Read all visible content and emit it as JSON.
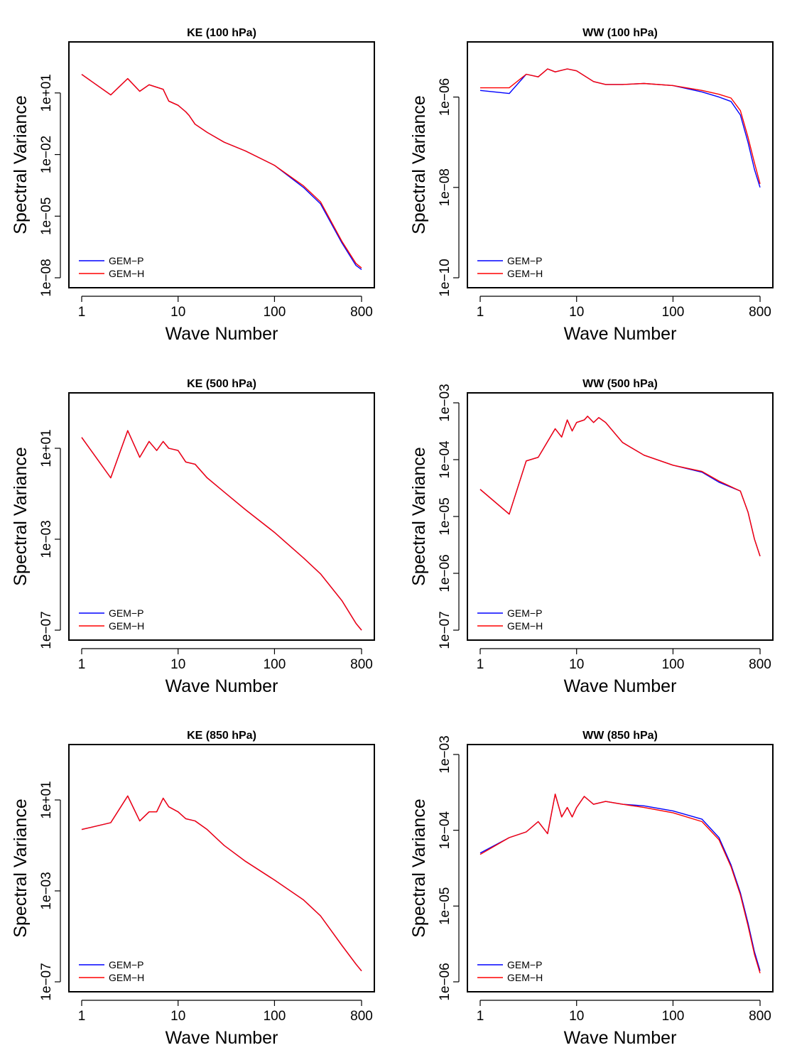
{
  "chart_data": [
    {
      "type": "line",
      "title": "KE (100 hPa)",
      "xlabel": "Wave Number",
      "ylabel": "Spectral Variance",
      "xscale": "log",
      "yscale": "log",
      "xlim": [
        1,
        800
      ],
      "ylim": [
        1e-08,
        1000
      ],
      "xticks": [
        1,
        10,
        100,
        800
      ],
      "xtick_labels": [
        "1",
        "10",
        "100",
        "800"
      ],
      "yticks": [
        1e-08,
        1e-05,
        0.01,
        10
      ],
      "ytick_labels": [
        "1e−08",
        "1e−05",
        "1e−02",
        "1e+01"
      ],
      "legend": [
        "GEM−P",
        "GEM−H"
      ],
      "legend_position": "bottom-left",
      "series": [
        {
          "name": "GEM−P",
          "color": "#0000ff",
          "x": [
            1,
            2,
            3,
            4,
            5,
            7,
            8,
            10,
            12,
            13,
            15,
            20,
            30,
            50,
            100,
            200,
            300,
            500,
            700,
            800
          ],
          "y": [
            80,
            8,
            50,
            12,
            25,
            15,
            4,
            2.5,
            1.2,
            0.8,
            0.3,
            0.12,
            0.04,
            0.015,
            0.003,
            0.00025,
            4e-05,
            5e-07,
            4e-08,
            2.5e-08
          ]
        },
        {
          "name": "GEM−H",
          "color": "#ff0000",
          "x": [
            1,
            2,
            3,
            4,
            5,
            7,
            8,
            10,
            12,
            13,
            15,
            20,
            30,
            50,
            100,
            200,
            300,
            500,
            700,
            800
          ],
          "y": [
            80,
            8,
            50,
            12,
            25,
            15,
            4,
            2.5,
            1.2,
            0.8,
            0.3,
            0.12,
            0.04,
            0.015,
            0.003,
            0.0003,
            5e-05,
            6e-07,
            5e-08,
            3e-08
          ]
        }
      ]
    },
    {
      "type": "line",
      "title": "WW (100 hPa)",
      "xlabel": "Wave Number",
      "ylabel": "Spectral Variance",
      "xscale": "log",
      "yscale": "log",
      "xlim": [
        1,
        800
      ],
      "ylim": [
        1e-10,
        1e-05
      ],
      "xticks": [
        1,
        10,
        100,
        800
      ],
      "xtick_labels": [
        "1",
        "10",
        "100",
        "800"
      ],
      "yticks": [
        1e-10,
        1e-08,
        1e-06
      ],
      "ytick_labels": [
        "1e−10",
        "1e−08",
        "1e−06"
      ],
      "legend": [
        "GEM−P",
        "GEM−H"
      ],
      "legend_position": "bottom-left",
      "series": [
        {
          "name": "GEM−P",
          "color": "#0000ff",
          "x": [
            1,
            2,
            3,
            4,
            5,
            6,
            8,
            10,
            15,
            20,
            30,
            50,
            100,
            200,
            300,
            400,
            500,
            600,
            700,
            800
          ],
          "y": [
            1.4e-06,
            1.2e-06,
            3.2e-06,
            2.8e-06,
            4.2e-06,
            3.6e-06,
            4.2e-06,
            3.8e-06,
            2.2e-06,
            1.9e-06,
            1.9e-06,
            2e-06,
            1.8e-06,
            1.3e-06,
            1e-06,
            8e-07,
            4e-07,
            1e-07,
            2.5e-08,
            1e-08
          ]
        },
        {
          "name": "GEM−H",
          "color": "#ff0000",
          "x": [
            1,
            2,
            3,
            4,
            5,
            6,
            8,
            10,
            15,
            20,
            30,
            50,
            100,
            200,
            300,
            400,
            500,
            600,
            700,
            800
          ],
          "y": [
            1.6e-06,
            1.6e-06,
            3.2e-06,
            2.8e-06,
            4.2e-06,
            3.6e-06,
            4.2e-06,
            3.8e-06,
            2.2e-06,
            1.9e-06,
            1.9e-06,
            2e-06,
            1.8e-06,
            1.4e-06,
            1.15e-06,
            9.5e-07,
            5e-07,
            1.3e-07,
            3.5e-08,
            1.2e-08
          ]
        }
      ]
    },
    {
      "type": "line",
      "title": "KE (500 hPa)",
      "xlabel": "Wave Number",
      "ylabel": "Spectral Variance",
      "xscale": "log",
      "yscale": "log",
      "xlim": [
        1,
        800
      ],
      "ylim": [
        1e-07,
        1000
      ],
      "xticks": [
        1,
        10,
        100,
        800
      ],
      "xtick_labels": [
        "1",
        "10",
        "100",
        "800"
      ],
      "yticks": [
        1e-07,
        0.001,
        10
      ],
      "ytick_labels": [
        "1e−07",
        "1e−03",
        "1e+01"
      ],
      "legend": [
        "GEM−P",
        "GEM−H"
      ],
      "legend_position": "bottom-left",
      "series": [
        {
          "name": "GEM−P",
          "color": "#0000ff",
          "x": [
            1,
            2,
            3,
            4,
            5,
            6,
            7,
            8,
            10,
            12,
            15,
            20,
            30,
            50,
            100,
            200,
            300,
            500,
            700,
            800
          ],
          "y": [
            30,
            0.5,
            60,
            4,
            20,
            8,
            20,
            10,
            8,
            2.5,
            2,
            0.5,
            0.12,
            0.02,
            0.002,
            0.00015,
            3e-05,
            2e-06,
            2e-07,
            1e-07
          ]
        },
        {
          "name": "GEM−H",
          "color": "#ff0000",
          "x": [
            1,
            2,
            3,
            4,
            5,
            6,
            7,
            8,
            10,
            12,
            15,
            20,
            30,
            50,
            100,
            200,
            300,
            500,
            700,
            800
          ],
          "y": [
            30,
            0.5,
            60,
            4,
            20,
            8,
            20,
            10,
            8,
            2.5,
            2,
            0.5,
            0.12,
            0.02,
            0.002,
            0.00015,
            3e-05,
            2e-06,
            2e-07,
            1e-07
          ]
        }
      ]
    },
    {
      "type": "line",
      "title": "WW (500 hPa)",
      "xlabel": "Wave Number",
      "ylabel": "Spectral Variance",
      "xscale": "log",
      "yscale": "log",
      "xlim": [
        1,
        800
      ],
      "ylim": [
        1e-07,
        0.001
      ],
      "xticks": [
        1,
        10,
        100,
        800
      ],
      "xtick_labels": [
        "1",
        "10",
        "100",
        "800"
      ],
      "yticks": [
        1e-07,
        1e-06,
        1e-05,
        0.0001,
        0.001
      ],
      "ytick_labels": [
        "1e−07",
        "1e−06",
        "1e−05",
        "1e−04",
        "1e−03"
      ],
      "legend": [
        "GEM−P",
        "GEM−H"
      ],
      "legend_position": "bottom-left",
      "series": [
        {
          "name": "GEM−P",
          "color": "#0000ff",
          "x": [
            1,
            2,
            3,
            4,
            6,
            7,
            8,
            9,
            10,
            12,
            13,
            15,
            17,
            20,
            30,
            50,
            100,
            200,
            300,
            500,
            600,
            700,
            800
          ],
          "y": [
            3e-05,
            1.1e-05,
            9.5e-05,
            0.00011,
            0.00035,
            0.00025,
            0.0005,
            0.00032,
            0.00045,
            0.0005,
            0.00058,
            0.00045,
            0.00055,
            0.00045,
            0.0002,
            0.00012,
            8e-05,
            6e-05,
            4e-05,
            2.8e-05,
            1.2e-05,
            4e-06,
            2e-06
          ]
        },
        {
          "name": "GEM−H",
          "color": "#ff0000",
          "x": [
            1,
            2,
            3,
            4,
            6,
            7,
            8,
            9,
            10,
            12,
            13,
            15,
            17,
            20,
            30,
            50,
            100,
            200,
            300,
            500,
            600,
            700,
            800
          ],
          "y": [
            3e-05,
            1.1e-05,
            9.5e-05,
            0.00011,
            0.00035,
            0.00025,
            0.0005,
            0.00032,
            0.00045,
            0.0005,
            0.00058,
            0.00045,
            0.00055,
            0.00045,
            0.0002,
            0.00012,
            8e-05,
            6.2e-05,
            4.2e-05,
            2.8e-05,
            1.2e-05,
            4e-06,
            2e-06
          ]
        }
      ]
    },
    {
      "type": "line",
      "title": "KE (850 hPa)",
      "xlabel": "Wave Number",
      "ylabel": "Spectral Variance",
      "xscale": "log",
      "yscale": "log",
      "xlim": [
        1,
        800
      ],
      "ylim": [
        1e-07,
        1000
      ],
      "xticks": [
        1,
        10,
        100,
        800
      ],
      "xtick_labels": [
        "1",
        "10",
        "100",
        "800"
      ],
      "yticks": [
        1e-07,
        0.001,
        10
      ],
      "ytick_labels": [
        "1e−07",
        "1e−03",
        "1e+01"
      ],
      "legend": [
        "GEM−P",
        "GEM−H"
      ],
      "legend_position": "bottom-left",
      "series": [
        {
          "name": "GEM−P",
          "color": "#0000ff",
          "x": [
            1,
            2,
            3,
            4,
            5,
            6,
            7,
            8,
            10,
            12,
            15,
            20,
            30,
            50,
            100,
            200,
            300,
            500,
            700,
            800
          ],
          "y": [
            0.5,
            1,
            15,
            1.2,
            3,
            3,
            12,
            5,
            3,
            1.5,
            1.2,
            0.5,
            0.1,
            0.02,
            0.003,
            0.0004,
            8e-05,
            4e-06,
            6e-07,
            3e-07
          ]
        },
        {
          "name": "GEM−H",
          "color": "#ff0000",
          "x": [
            1,
            2,
            3,
            4,
            5,
            6,
            7,
            8,
            10,
            12,
            15,
            20,
            30,
            50,
            100,
            200,
            300,
            500,
            700,
            800
          ],
          "y": [
            0.5,
            1,
            15,
            1.2,
            3,
            3,
            12,
            5,
            3,
            1.5,
            1.2,
            0.5,
            0.1,
            0.02,
            0.003,
            0.0004,
            8e-05,
            4e-06,
            6e-07,
            3e-07
          ]
        }
      ]
    },
    {
      "type": "line",
      "title": "WW (850 hPa)",
      "xlabel": "Wave Number",
      "ylabel": "Spectral Variance",
      "xscale": "log",
      "yscale": "log",
      "xlim": [
        1,
        800
      ],
      "ylim": [
        1e-06,
        0.001
      ],
      "xticks": [
        1,
        10,
        100,
        800
      ],
      "xtick_labels": [
        "1",
        "10",
        "100",
        "800"
      ],
      "yticks": [
        1e-06,
        1e-05,
        0.0001,
        0.001
      ],
      "ytick_labels": [
        "1e−06",
        "1e−05",
        "1e−04",
        "1e−03"
      ],
      "legend": [
        "GEM−P",
        "GEM−H"
      ],
      "legend_position": "bottom-left",
      "series": [
        {
          "name": "GEM−P",
          "color": "#0000ff",
          "x": [
            1,
            2,
            3,
            4,
            5,
            6,
            7,
            8,
            9,
            10,
            12,
            15,
            20,
            30,
            50,
            100,
            200,
            300,
            400,
            500,
            600,
            700,
            800
          ],
          "y": [
            5e-05,
            8e-05,
            9.5e-05,
            0.00013,
            9e-05,
            0.0003,
            0.00015,
            0.0002,
            0.00015,
            0.0002,
            0.00028,
            0.00022,
            0.00024,
            0.00022,
            0.00021,
            0.00018,
            0.00014,
            8e-05,
            3.5e-05,
            1.5e-05,
            6e-06,
            2.5e-06,
            1.4e-06
          ]
        },
        {
          "name": "GEM−H",
          "color": "#ff0000",
          "x": [
            1,
            2,
            3,
            4,
            5,
            6,
            7,
            8,
            9,
            10,
            12,
            15,
            20,
            30,
            50,
            100,
            200,
            300,
            400,
            500,
            600,
            700,
            800
          ],
          "y": [
            4.8e-05,
            8e-05,
            9.5e-05,
            0.00013,
            9e-05,
            0.0003,
            0.00015,
            0.0002,
            0.00015,
            0.0002,
            0.00028,
            0.00022,
            0.00024,
            0.00022,
            0.0002,
            0.00017,
            0.00013,
            7.5e-05,
            3.3e-05,
            1.4e-05,
            5.5e-06,
            2.3e-06,
            1.3e-06
          ]
        }
      ]
    }
  ]
}
